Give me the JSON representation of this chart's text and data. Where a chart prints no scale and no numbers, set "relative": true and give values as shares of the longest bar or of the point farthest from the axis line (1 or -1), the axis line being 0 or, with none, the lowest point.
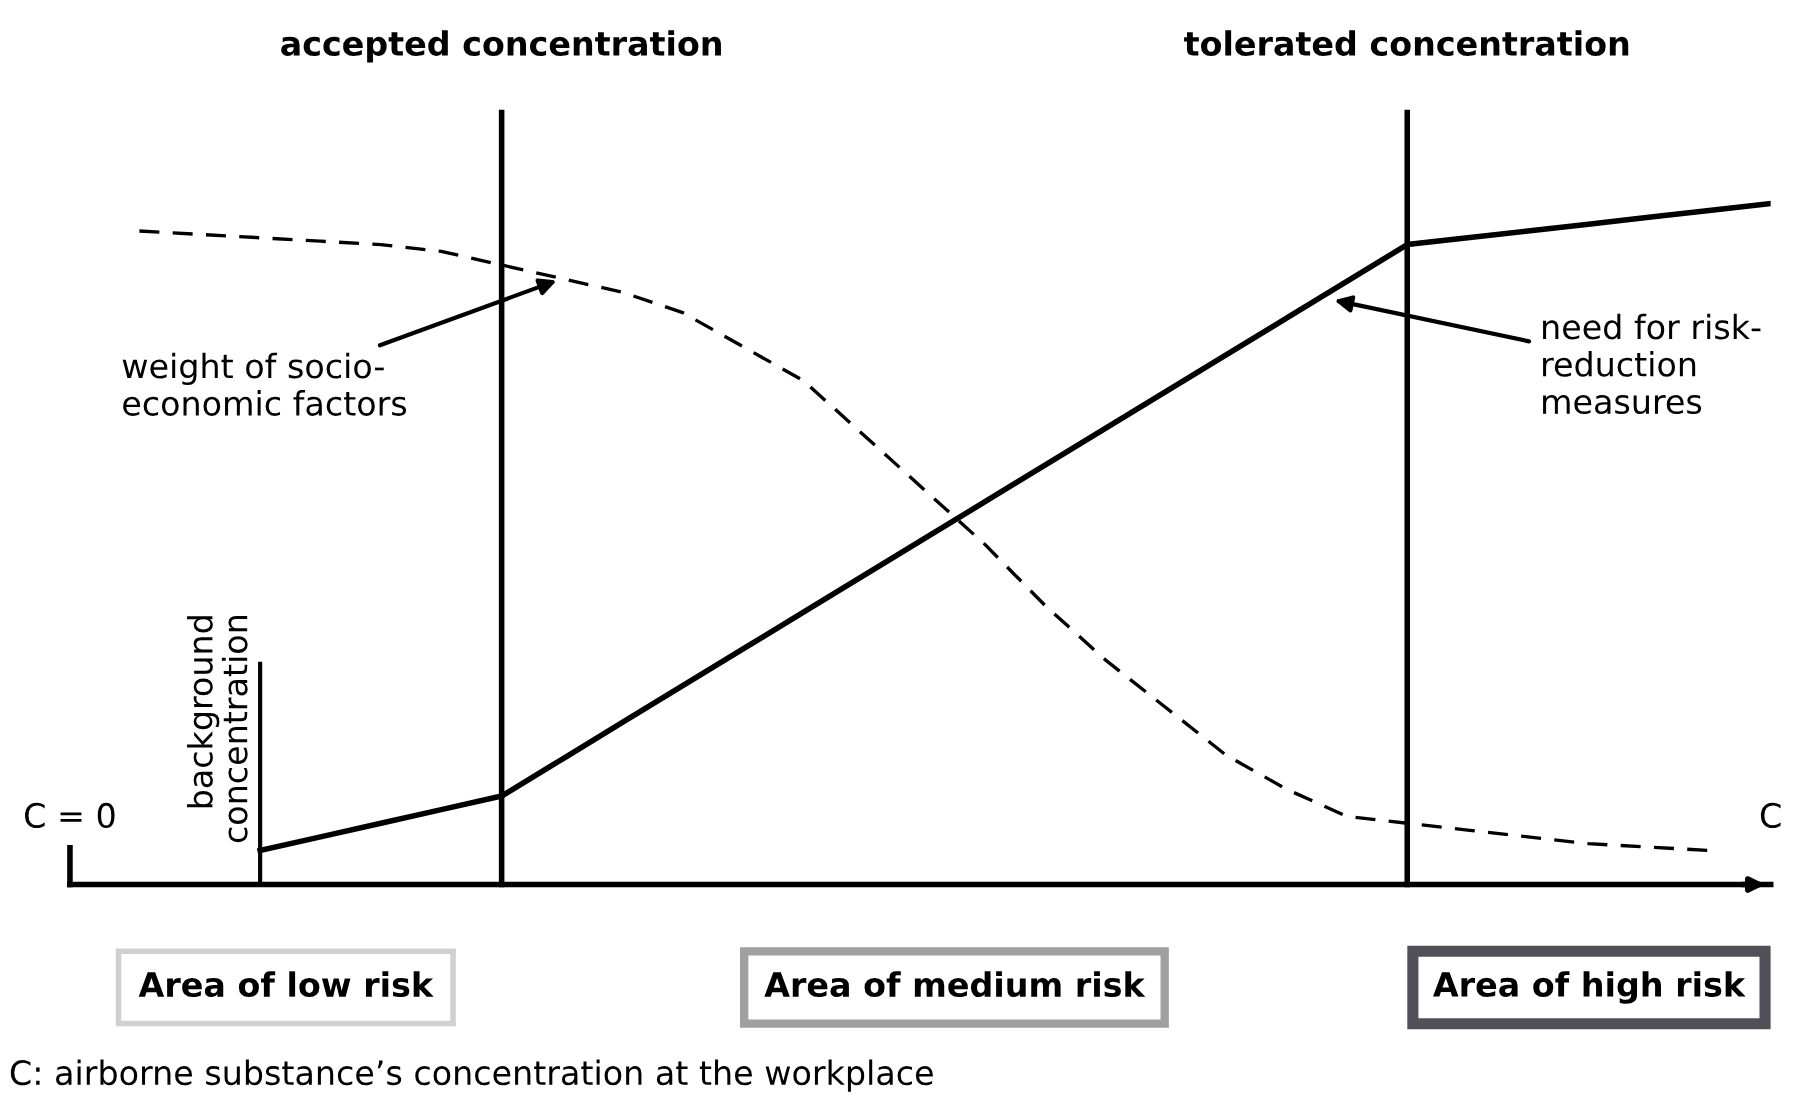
{
  "chart_data": {
    "type": "line",
    "relative": true,
    "categories": [
      null,
      null,
      null,
      null,
      null,
      null,
      null,
      null,
      null,
      null,
      null,
      null,
      null,
      null,
      null,
      null,
      null,
      null,
      null,
      null,
      null,
      null,
      null,
      null,
      null,
      null,
      null,
      null
    ],
    "series": [
      {
        "color": "#000000",
        "line_style": "solid",
        "values": [
          null,
          null,
          0.05,
          0.07,
          0.09,
          0.11,
          0.13,
          0.184,
          0.238,
          0.292,
          0.346,
          0.4,
          0.454,
          0.508,
          0.562,
          0.616,
          0.67,
          0.724,
          0.778,
          0.832,
          0.886,
          0.94,
          0.95,
          0.96,
          0.97,
          0.98,
          0.99,
          1
        ]
      },
      {
        "color": "#000000",
        "line_style": "dashed",
        "values": [
          0.96,
          0.955,
          0.95,
          0.945,
          0.94,
          0.93,
          0.91,
          0.89,
          0.87,
          0.84,
          0.79,
          0.74,
          0.66,
          0.58,
          0.5,
          0.41,
          0.33,
          0.26,
          0.19,
          0.14,
          0.1,
          0.09,
          0.08,
          0.07,
          0.06,
          0.055,
          0.05,
          null
        ]
      }
    ],
    "annotations": [
      "accepted concentration",
      "tolerated concentration",
      "background\nconcentration",
      "weight of socio-\neconomic factors",
      "need for risk-\nreduction\nmeasures",
      "C = 0",
      "C",
      "Area of low risk",
      "Area of medium risk",
      "Area of high risk",
      "C: airborne substance’s concentration at the workplace"
    ]
  }
}
